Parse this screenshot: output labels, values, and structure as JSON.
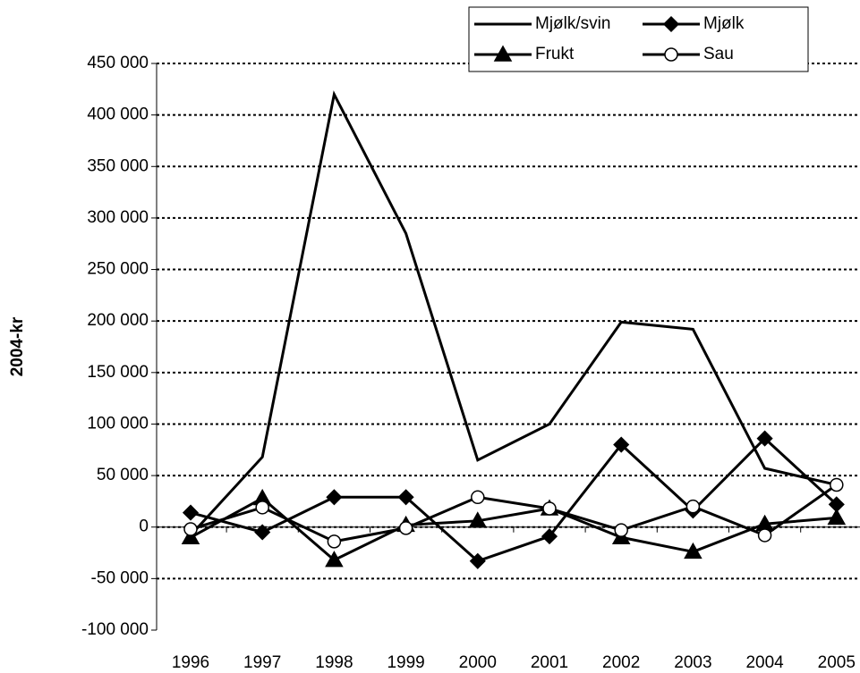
{
  "chart_data": {
    "type": "line",
    "y_label": "2004-kr",
    "categories": [
      "1996",
      "1997",
      "1998",
      "1999",
      "2000",
      "2001",
      "2002",
      "2003",
      "2004",
      "2005"
    ],
    "series": [
      {
        "name": "Mjølk/svin",
        "color": "#000000",
        "marker": "none",
        "values": [
          -8000,
          68000,
          420000,
          285000,
          65000,
          100000,
          199000,
          192000,
          57000,
          41000
        ]
      },
      {
        "name": "Mjølk",
        "color": "#000000",
        "marker": "diamond",
        "values": [
          14000,
          -5000,
          29000,
          29000,
          -33000,
          -9000,
          80000,
          16000,
          86000,
          22000
        ]
      },
      {
        "name": "Frukt",
        "color": "#000000",
        "marker": "triangle",
        "values": [
          -10000,
          28000,
          -32000,
          2000,
          6000,
          18000,
          -10000,
          -24000,
          3000,
          9000
        ]
      },
      {
        "name": "Sau",
        "color": "#000000",
        "marker": "circle",
        "values": [
          -2000,
          19000,
          -14000,
          -1000,
          29000,
          18000,
          -3000,
          20000,
          -8000,
          41000
        ]
      }
    ],
    "ylim": [
      -100000,
      450000
    ],
    "yticks": [
      {
        "value": -100000,
        "label": "-100 000"
      },
      {
        "value": -50000,
        "label": "-50 000"
      },
      0,
      {
        "value": 50000,
        "label": "50 000"
      },
      {
        "value": 100000,
        "label": "100 000"
      },
      {
        "value": 150000,
        "label": "150 000"
      },
      {
        "value": 200000,
        "label": "200 000"
      },
      {
        "value": 250000,
        "label": "250 000"
      },
      {
        "value": 300000,
        "label": "300 000"
      },
      {
        "value": 350000,
        "label": "350 000"
      },
      {
        "value": 400000,
        "label": "400 000"
      },
      {
        "value": 450000,
        "label": "450 000"
      }
    ],
    "grid": true,
    "legend": "top-right"
  }
}
